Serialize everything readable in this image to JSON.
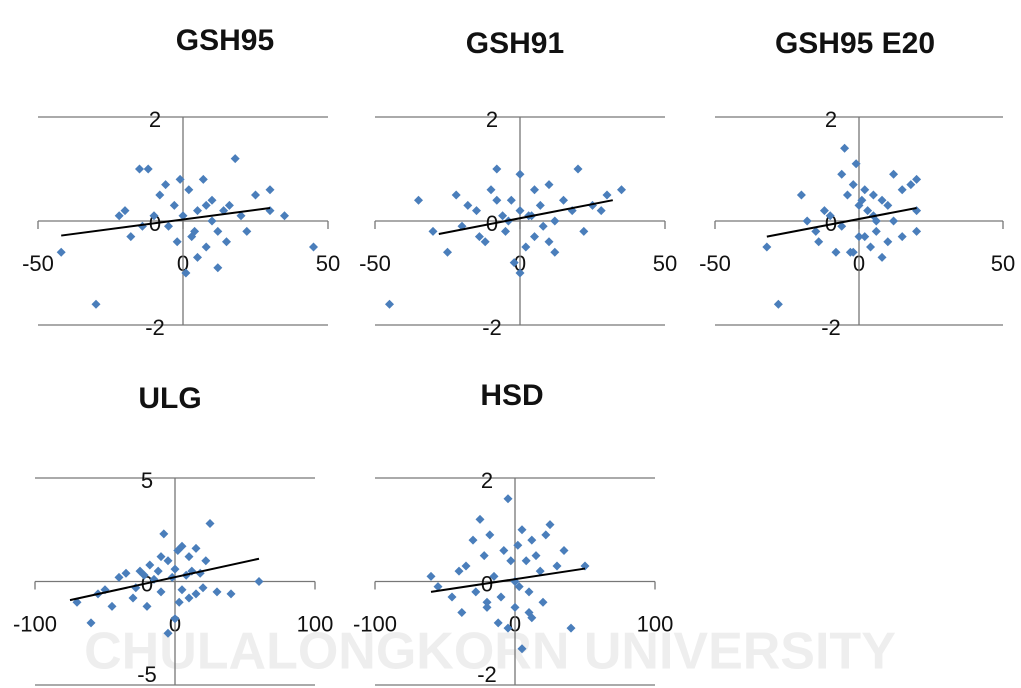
{
  "watermark": "CHULALONGKORN UNIVERSITY",
  "chart_data": [
    {
      "type": "scatter",
      "title": "GSH95",
      "color": "#4a7ebb",
      "xlim": [
        -50,
        50
      ],
      "ylim": [
        -2,
        2
      ],
      "xticks": [
        -50,
        0,
        50
      ],
      "yticks": [
        -2,
        0,
        2
      ],
      "grid": true,
      "x": [
        -42,
        -30,
        -20,
        -18,
        -15,
        -12,
        -10,
        -8,
        -5,
        -3,
        -2,
        0,
        2,
        3,
        5,
        5,
        7,
        8,
        10,
        10,
        12,
        12,
        14,
        15,
        18,
        20,
        22,
        25,
        30,
        30,
        35,
        45,
        -6,
        -14,
        4,
        1,
        -1,
        16,
        -22,
        8
      ],
      "y": [
        -0.6,
        -1.6,
        0.2,
        -0.3,
        1.0,
        1.0,
        0.1,
        0.5,
        -0.1,
        0.3,
        -0.4,
        0.1,
        0.6,
        -0.3,
        0.2,
        -0.7,
        0.8,
        -0.5,
        0.0,
        0.4,
        -0.2,
        -0.9,
        0.2,
        -0.4,
        1.2,
        0.1,
        -0.2,
        0.5,
        0.6,
        0.2,
        0.1,
        -0.5,
        0.7,
        -0.1,
        -0.2,
        -1.0,
        0.8,
        0.3,
        0.1,
        0.3
      ],
      "trendline": {
        "x": [
          -42,
          30
        ],
        "y": [
          -0.28,
          0.25
        ]
      }
    },
    {
      "type": "scatter",
      "title": "GSH91",
      "color": "#4a7ebb",
      "xlim": [
        -50,
        50
      ],
      "ylim": [
        -2,
        2
      ],
      "xticks": [
        -50,
        0,
        50
      ],
      "yticks": [
        -2,
        0,
        2
      ],
      "grid": true,
      "x": [
        -45,
        -35,
        -30,
        -25,
        -22,
        -20,
        -18,
        -15,
        -12,
        -10,
        -8,
        -6,
        -5,
        -3,
        -2,
        0,
        0,
        2,
        3,
        5,
        5,
        7,
        8,
        10,
        12,
        12,
        15,
        18,
        20,
        22,
        25,
        28,
        30,
        35,
        -14,
        -8,
        4,
        0,
        -4,
        10
      ],
      "y": [
        -1.6,
        0.4,
        -0.2,
        -0.6,
        0.5,
        -0.1,
        0.3,
        0.2,
        -0.4,
        0.6,
        1.0,
        0.1,
        -0.2,
        0.4,
        -0.8,
        0.9,
        0.2,
        -0.5,
        0.1,
        0.6,
        -0.3,
        0.3,
        -0.1,
        0.7,
        0.0,
        -0.6,
        0.4,
        0.2,
        1.0,
        -0.2,
        0.3,
        0.2,
        0.5,
        0.6,
        -0.3,
        0.4,
        0.1,
        -1.0,
        0.0,
        -0.4
      ],
      "trendline": {
        "x": [
          -28,
          32
        ],
        "y": [
          -0.25,
          0.4
        ]
      }
    },
    {
      "type": "scatter",
      "title": "GSH95 E20",
      "color": "#4a7ebb",
      "xlim": [
        -50,
        50
      ],
      "ylim": [
        -2,
        2
      ],
      "xticks": [
        -50,
        0,
        50
      ],
      "yticks": [
        -2,
        0,
        2
      ],
      "grid": true,
      "x": [
        -32,
        -28,
        -20,
        -18,
        -15,
        -12,
        -10,
        -8,
        -6,
        -5,
        -4,
        -3,
        -2,
        -1,
        0,
        0,
        1,
        2,
        3,
        4,
        5,
        5,
        6,
        8,
        8,
        10,
        10,
        12,
        12,
        15,
        15,
        18,
        20,
        20,
        20,
        -6,
        -2,
        2,
        -14,
        6
      ],
      "y": [
        -0.5,
        -1.6,
        0.5,
        0.0,
        -0.2,
        0.2,
        0.1,
        -0.6,
        0.9,
        1.4,
        0.5,
        -0.6,
        0.7,
        1.1,
        -0.3,
        0.3,
        0.4,
        0.6,
        0.2,
        -0.5,
        0.1,
        0.5,
        -0.2,
        0.4,
        -0.7,
        0.3,
        -0.4,
        0.9,
        0.0,
        0.6,
        -0.3,
        0.7,
        0.2,
        -0.2,
        0.8,
        -0.1,
        -0.6,
        -0.3,
        -0.4,
        0.0
      ],
      "trendline": {
        "x": [
          -32,
          20
        ],
        "y": [
          -0.3,
          0.25
        ]
      }
    },
    {
      "type": "scatter",
      "title": "ULG",
      "color": "#4a7ebb",
      "xlim": [
        -100,
        100
      ],
      "ylim": [
        -5,
        5
      ],
      "xticks": [
        -100,
        0,
        100
      ],
      "yticks": [
        -5,
        0,
        5
      ],
      "grid": true,
      "x": [
        -70,
        -60,
        -55,
        -50,
        -45,
        -40,
        -35,
        -30,
        -28,
        -25,
        -22,
        -20,
        -18,
        -15,
        -12,
        -10,
        -8,
        -5,
        -5,
        -2,
        0,
        0,
        2,
        5,
        5,
        8,
        10,
        10,
        12,
        15,
        15,
        18,
        20,
        22,
        25,
        30,
        40,
        60,
        -10,
        3
      ],
      "y": [
        -1.0,
        -2.0,
        -0.6,
        -0.4,
        -1.2,
        0.2,
        0.4,
        -0.8,
        -0.3,
        0.5,
        0.3,
        -1.2,
        0.8,
        0.1,
        0.5,
        -0.5,
        2.3,
        1.0,
        -2.5,
        0.2,
        -1.8,
        0.6,
        1.5,
        -0.4,
        1.7,
        0.3,
        -0.8,
        1.2,
        0.5,
        -0.6,
        1.6,
        0.4,
        -0.3,
        1.0,
        2.8,
        -0.5,
        -0.6,
        0.0,
        1.2,
        -1.0
      ],
      "trendline": {
        "x": [
          -75,
          60
        ],
        "y": [
          -0.9,
          1.1
        ]
      }
    },
    {
      "type": "scatter",
      "title": "HSD",
      "color": "#4a7ebb",
      "xlim": [
        -100,
        100
      ],
      "ylim": [
        -2,
        2
      ],
      "xticks": [
        -100,
        0,
        100
      ],
      "yticks": [
        -2,
        0,
        2
      ],
      "grid": true,
      "x": [
        -60,
        -55,
        -45,
        -40,
        -38,
        -35,
        -30,
        -28,
        -25,
        -22,
        -20,
        -18,
        -15,
        -12,
        -10,
        -8,
        -5,
        -5,
        -3,
        0,
        0,
        2,
        3,
        5,
        5,
        8,
        10,
        12,
        12,
        15,
        18,
        20,
        22,
        25,
        30,
        35,
        40,
        50,
        -20,
        10
      ],
      "y": [
        0.1,
        -0.1,
        -0.3,
        0.2,
        -0.6,
        0.3,
        0.8,
        -0.2,
        1.2,
        0.5,
        -0.5,
        0.9,
        0.1,
        -0.8,
        -0.3,
        0.6,
        1.6,
        -0.9,
        0.4,
        0.0,
        -0.5,
        0.7,
        -0.1,
        1.0,
        -1.3,
        0.4,
        -0.2,
        0.8,
        -0.7,
        0.5,
        0.2,
        -0.4,
        0.9,
        1.1,
        0.3,
        0.6,
        -0.9,
        0.3,
        -0.4,
        -0.6
      ],
      "trendline": {
        "x": [
          -60,
          50
        ],
        "y": [
          -0.2,
          0.25
        ]
      }
    }
  ]
}
